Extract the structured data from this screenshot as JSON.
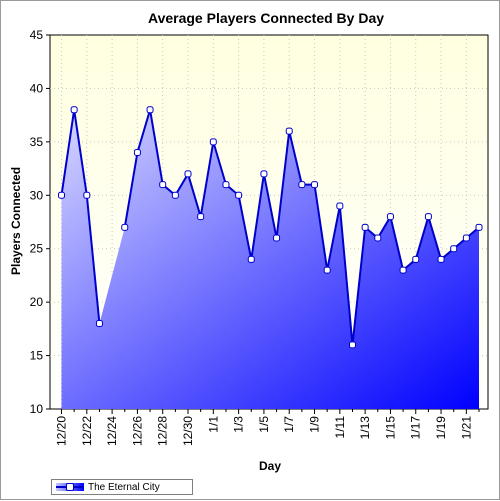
{
  "chart_data": {
    "type": "area",
    "title": "Average Players Connected By Day",
    "xlabel": "Day",
    "ylabel": "Players Connected",
    "ylim": [
      10,
      45
    ],
    "yticks": [
      10,
      15,
      20,
      25,
      30,
      35,
      40,
      45
    ],
    "x": [
      "12/20",
      "12/21",
      "12/22",
      "12/23",
      "12/24",
      "12/25",
      "12/26",
      "12/27",
      "12/28",
      "12/29",
      "12/30",
      "12/31",
      "1/1",
      "1/2",
      "1/3",
      "1/4",
      "1/5",
      "1/6",
      "1/7",
      "1/8",
      "1/9",
      "1/10",
      "1/11",
      "1/12",
      "1/13",
      "1/14",
      "1/15",
      "1/16",
      "1/17",
      "1/18",
      "1/19",
      "1/20",
      "1/21",
      "1/22"
    ],
    "x_tick_labels": [
      "12/20",
      "12/22",
      "12/24",
      "12/26",
      "12/28",
      "12/30",
      "1/1",
      "1/3",
      "1/5",
      "1/7",
      "1/9",
      "1/11",
      "1/13",
      "1/15",
      "1/17",
      "1/19",
      "1/21"
    ],
    "series": [
      {
        "name": "The Eternal City",
        "values": [
          30,
          38,
          30,
          18,
          null,
          27,
          34,
          38,
          31,
          30,
          32,
          28,
          35,
          31,
          30,
          24,
          32,
          26,
          36,
          31,
          31,
          23,
          29,
          16,
          27,
          26,
          28,
          23,
          24,
          28,
          24,
          25,
          26,
          27
        ]
      }
    ],
    "grid": true,
    "legend_position": "bottom-left",
    "colors": {
      "plot_background_top": "#ffffe0",
      "plot_background_bottom": "#ffffff",
      "area_light": "#d8d8ff",
      "area_dark": "#0000ff",
      "line": "#0000cc",
      "marker_fill": "#ffffff"
    }
  }
}
